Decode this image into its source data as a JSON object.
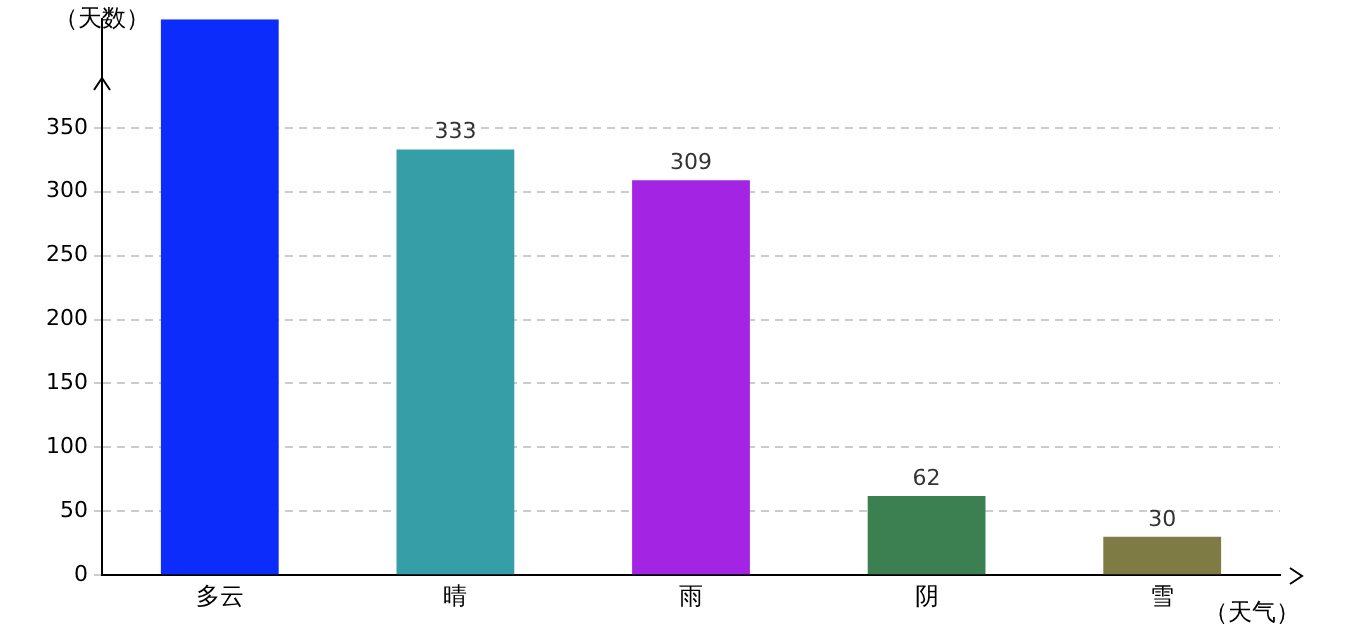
{
  "chart_data": {
    "type": "bar",
    "xlabel": "（天气）",
    "ylabel": "（天数）",
    "categories": [
      "多云",
      "晴",
      "雨",
      "阴",
      "雪"
    ],
    "values": [
      435,
      333,
      309,
      62,
      30
    ],
    "colors": [
      "#0c2cfc",
      "#369ea6",
      "#a424e4",
      "#3c7f51",
      "#7f7b45"
    ],
    "value_labels": [
      null,
      "333",
      "309",
      "62",
      "30"
    ],
    "ylim": [
      0,
      435
    ],
    "yticks": [
      0,
      50,
      100,
      150,
      200,
      250,
      300,
      350
    ],
    "grid": "y",
    "legend": false
  }
}
